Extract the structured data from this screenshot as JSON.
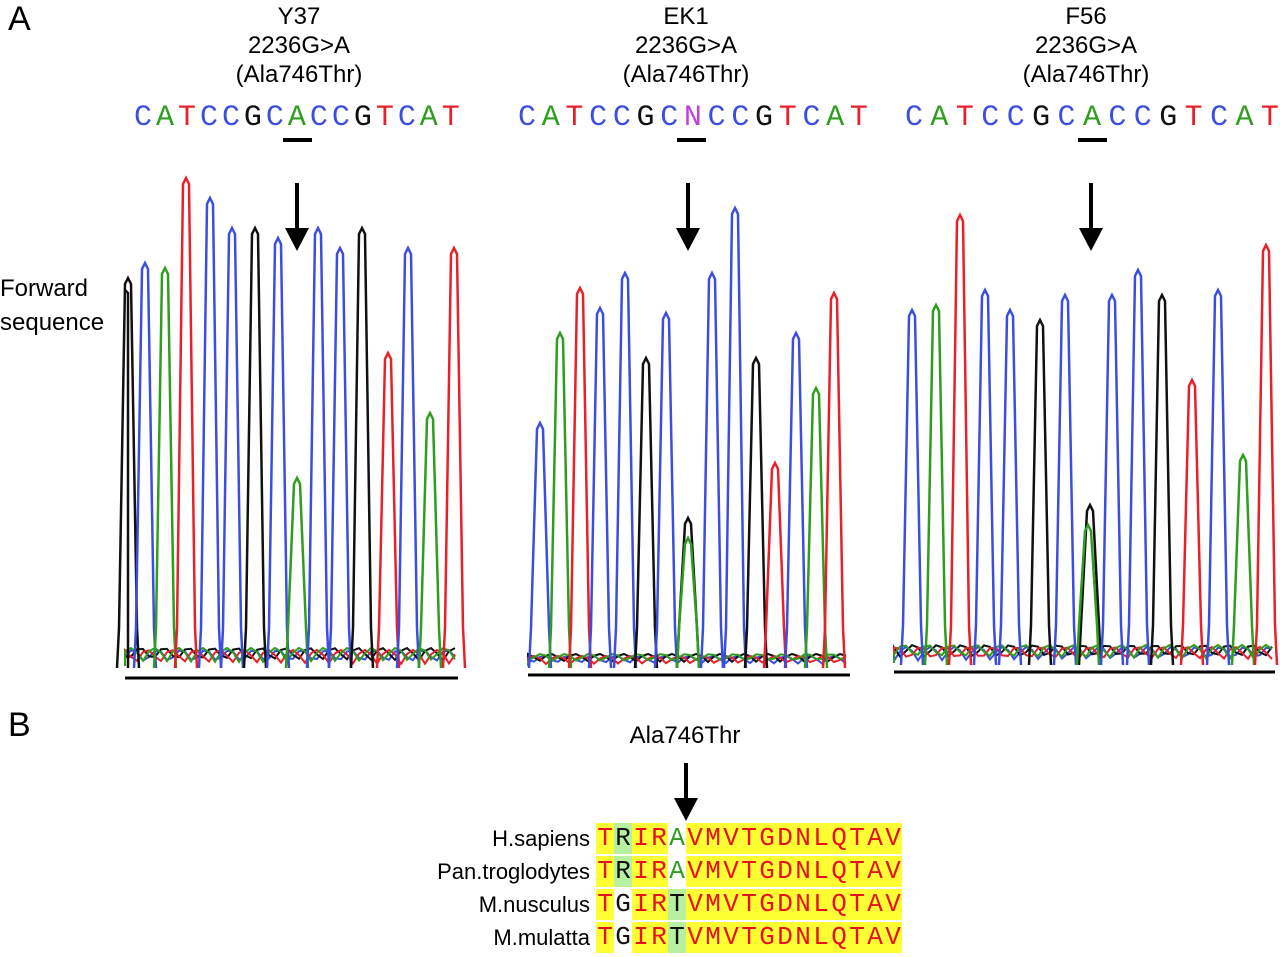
{
  "panel_a": {
    "letter": "A",
    "side_label_1": "Forward",
    "side_label_2": "sequence"
  },
  "panel_b": {
    "letter": "B",
    "mutation_label": "Ala746Thr"
  },
  "colors": {
    "A": "#2f9e1f",
    "C": "#3b4ee0",
    "G": "#111111",
    "T": "#e8202a",
    "N": "#c040d8",
    "highlight_yellow": "#ffff33",
    "highlight_green": "#b7f0a0",
    "aa_red": "#e8101a"
  },
  "samples": [
    {
      "id": "Y37",
      "mutation": "2236G>A",
      "protein": "(Ala746Thr)",
      "sequence": [
        "C",
        "A",
        "T",
        "C",
        "C",
        "G",
        "C",
        "A",
        "C",
        "C",
        "G",
        "T",
        "C",
        "A",
        "T"
      ],
      "mutation_index": 7
    },
    {
      "id": "EK1",
      "mutation": "2236G>A",
      "protein": "(Ala746Thr)",
      "sequence": [
        "C",
        "A",
        "T",
        "C",
        "C",
        "G",
        "C",
        "N",
        "C",
        "C",
        "G",
        "T",
        "C",
        "A",
        "T"
      ],
      "mutation_index": 7
    },
    {
      "id": "F56",
      "mutation": "2236G>A",
      "protein": "(Ala746Thr)",
      "sequence": [
        "C",
        "A",
        "T",
        "C",
        "C",
        "G",
        "C",
        "A",
        "C",
        "C",
        "G",
        "T",
        "C",
        "A",
        "T"
      ],
      "mutation_index": 7
    }
  ],
  "alignment": [
    {
      "species": "H.sapiens",
      "residues": [
        "T",
        "R",
        "I",
        "R",
        "A",
        "V",
        "M",
        "V",
        "T",
        "G",
        "D",
        "N",
        "L",
        "Q",
        "T",
        "A",
        "V"
      ],
      "residue_style": [
        "y",
        "g",
        "y",
        "y",
        "wg",
        "y",
        "y",
        "y",
        "y",
        "y",
        "y",
        "y",
        "y",
        "y",
        "y",
        "y",
        "y"
      ]
    },
    {
      "species": "Pan.troglodytes",
      "residues": [
        "T",
        "R",
        "I",
        "R",
        "A",
        "V",
        "M",
        "V",
        "T",
        "G",
        "D",
        "N",
        "L",
        "Q",
        "T",
        "A",
        "V"
      ],
      "residue_style": [
        "y",
        "g",
        "y",
        "y",
        "wg",
        "y",
        "y",
        "y",
        "y",
        "y",
        "y",
        "y",
        "y",
        "y",
        "y",
        "y",
        "y"
      ]
    },
    {
      "species": "M.nusculus",
      "residues": [
        "T",
        "G",
        "I",
        "R",
        "T",
        "V",
        "M",
        "V",
        "T",
        "G",
        "D",
        "N",
        "L",
        "Q",
        "T",
        "A",
        "V"
      ],
      "residue_style": [
        "y",
        "w",
        "y",
        "y",
        "gk",
        "y",
        "y",
        "y",
        "y",
        "y",
        "y",
        "y",
        "y",
        "y",
        "y",
        "y",
        "y"
      ]
    },
    {
      "species": "M.mulatta",
      "residues": [
        "T",
        "G",
        "I",
        "R",
        "T",
        "V",
        "M",
        "V",
        "T",
        "G",
        "D",
        "N",
        "L",
        "Q",
        "T",
        "A",
        "V"
      ],
      "residue_style": [
        "y",
        "w",
        "y",
        "y",
        "gk",
        "y",
        "y",
        "y",
        "y",
        "y",
        "y",
        "y",
        "y",
        "y",
        "y",
        "y",
        "y"
      ]
    }
  ]
}
